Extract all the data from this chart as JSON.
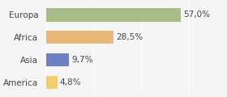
{
  "categories": [
    "America",
    "Asia",
    "Africa",
    "Europa"
  ],
  "values": [
    4.8,
    9.7,
    28.5,
    57.0
  ],
  "labels": [
    "4,8%",
    "9,7%",
    "28,5%",
    "57,0%"
  ],
  "bar_colors": [
    "#f0d070",
    "#6b81c0",
    "#e8b87a",
    "#a8bc8a"
  ],
  "background_color": "#f5f5f5",
  "xlim": [
    0,
    75
  ],
  "label_fontsize": 7.5,
  "category_fontsize": 7.5
}
